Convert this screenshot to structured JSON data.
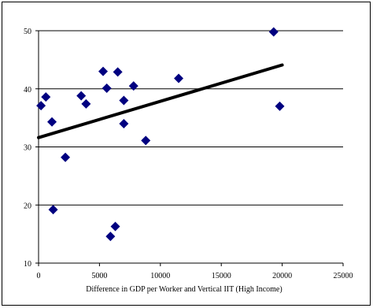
{
  "chart_data": {
    "type": "scatter",
    "title": "",
    "xlabel": "Difference in GDP per Worker and Vertical IIT (High Income)",
    "ylabel": "",
    "xlim": [
      0,
      25000
    ],
    "ylim": [
      10,
      50
    ],
    "xticks": [
      0,
      5000,
      10000,
      15000,
      20000,
      25000
    ],
    "yticks": [
      10,
      20,
      30,
      40,
      50
    ],
    "xtick_labels": [
      "0",
      "5000",
      "10000",
      "15000",
      "20000",
      "25000"
    ],
    "ytick_labels": [
      "10",
      "20",
      "30",
      "40",
      "50"
    ],
    "grid": "horizontal",
    "legend": "none",
    "marker": "diamond",
    "marker_color": "#000080",
    "trendline": {
      "type": "linear",
      "x": [
        0,
        20000
      ],
      "y": [
        31.6,
        44.1
      ],
      "color": "#000000"
    },
    "points": [
      {
        "x": 200,
        "y": 37.1
      },
      {
        "x": 600,
        "y": 38.6
      },
      {
        "x": 1100,
        "y": 34.3
      },
      {
        "x": 1200,
        "y": 19.2
      },
      {
        "x": 2200,
        "y": 28.2
      },
      {
        "x": 3500,
        "y": 38.8
      },
      {
        "x": 3900,
        "y": 37.4
      },
      {
        "x": 5300,
        "y": 43.0
      },
      {
        "x": 5600,
        "y": 40.1
      },
      {
        "x": 5900,
        "y": 14.6
      },
      {
        "x": 6300,
        "y": 16.3
      },
      {
        "x": 6500,
        "y": 42.9
      },
      {
        "x": 7000,
        "y": 38.0
      },
      {
        "x": 7000,
        "y": 34.0
      },
      {
        "x": 7800,
        "y": 40.5
      },
      {
        "x": 8800,
        "y": 31.1
      },
      {
        "x": 11500,
        "y": 41.8
      },
      {
        "x": 19300,
        "y": 49.8
      },
      {
        "x": 19800,
        "y": 37.0
      }
    ]
  }
}
